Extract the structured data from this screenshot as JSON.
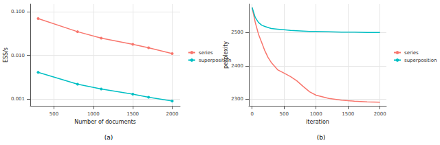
{
  "chart_data": [
    {
      "type": "line",
      "title": "(a)",
      "x_label": "Number of documents",
      "y_label": "ESS/s",
      "log": "y",
      "grid": true,
      "legend": "right",
      "marker": "circle",
      "x": [
        300,
        800,
        1100,
        1500,
        1700,
        2000
      ],
      "series": [
        {
          "name": "series",
          "color": "#F8766D",
          "values": [
            0.07,
            0.035,
            0.025,
            0.018,
            0.015,
            0.011
          ]
        },
        {
          "name": "superposition",
          "color": "#00BFC4",
          "values": [
            0.0041,
            0.0022,
            0.0017,
            0.0013,
            0.0011,
            0.0009
          ]
        }
      ],
      "xlim": [
        200,
        2100
      ],
      "xticks": [
        500,
        1000,
        1500,
        2000
      ],
      "ylim": [
        0.0007,
        0.15
      ],
      "yticks": [
        {
          "value": 0.001,
          "label": "0.001"
        },
        {
          "value": 0.01,
          "label": "0.010"
        },
        {
          "value": 0.1,
          "label": "0.100"
        }
      ]
    },
    {
      "type": "line",
      "title": "(b)",
      "x_label": "iteration",
      "y_label": "perplexity",
      "grid": true,
      "legend": "right",
      "x": [
        0,
        50,
        100,
        150,
        200,
        250,
        300,
        400,
        500,
        600,
        700,
        800,
        900,
        1000,
        1200,
        1400,
        1600,
        1800,
        2000
      ],
      "series": [
        {
          "name": "series",
          "color": "#F8766D",
          "values": [
            2575,
            2530,
            2495,
            2470,
            2445,
            2425,
            2410,
            2388,
            2378,
            2368,
            2355,
            2338,
            2322,
            2312,
            2302,
            2297,
            2294,
            2292,
            2291
          ]
        },
        {
          "name": "superposition",
          "color": "#00BFC4",
          "values": [
            2575,
            2545,
            2530,
            2522,
            2518,
            2515,
            2512,
            2510,
            2508,
            2506,
            2505,
            2504,
            2503,
            2503,
            2502,
            2501,
            2501,
            2500,
            2500
          ]
        }
      ],
      "xlim": [
        -50,
        2100
      ],
      "xticks": [
        0,
        500,
        1000,
        1500,
        2000
      ],
      "ylim": [
        2280,
        2585
      ],
      "yticks": [
        2300,
        2400,
        2500
      ]
    }
  ]
}
